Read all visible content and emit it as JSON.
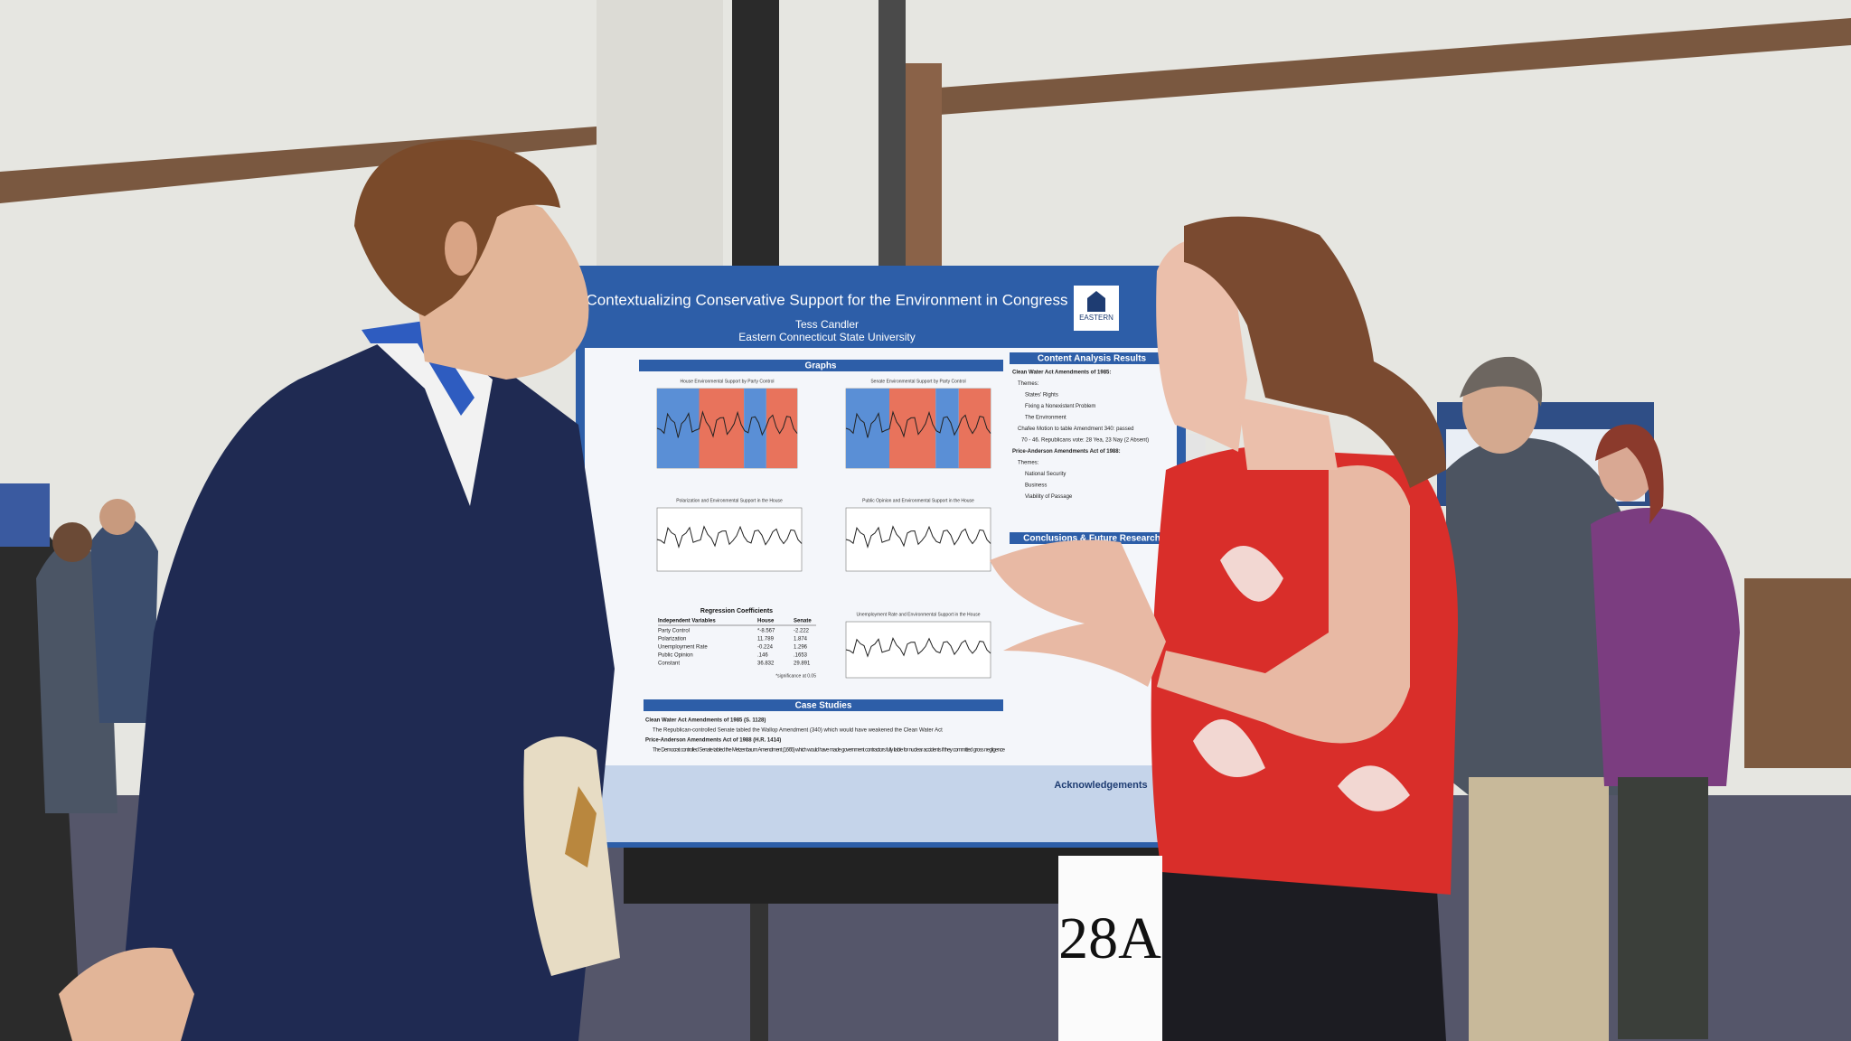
{
  "poster": {
    "title": "Contextualizing Conservative Support for the Environment in Congress",
    "author": "Tess Candler",
    "affiliation": "Eastern Connecticut State University",
    "logo": "EASTERN",
    "sections": {
      "graphs": "Graphs",
      "content_analysis": "Content Analysis Results",
      "conclusions": "Conclusions & Future Research",
      "case_studies": "Case Studies",
      "acknowledgements": "Acknowledgements"
    },
    "graph_titles": [
      "House Environmental Support by Party Control",
      "Senate Environmental Support by Party Control",
      "Polarization and Environmental Support in the House",
      "Public Opinion and Environmental Support in the House",
      "Unemployment Rate and Environmental Support in the House"
    ],
    "regression": {
      "title": "Regression Coefficients",
      "header": [
        "Independent Variables",
        "House",
        "Senate"
      ],
      "rows": [
        [
          "Party Control",
          "*-8.567",
          "-2.222"
        ],
        [
          "Polarization",
          "11.789",
          "1.874"
        ],
        [
          "Unemployment Rate",
          "-0.224",
          "1.296"
        ],
        [
          "Public Opinion",
          ".146",
          ".1653"
        ],
        [
          "Constant",
          "36.832",
          "29.891"
        ]
      ],
      "note": "*significance at 0.05"
    },
    "content_analysis": [
      "Clean Water Act Amendments of 1985:",
      "Themes:",
      "States' Rights",
      "Fixing a Nonexistent Problem",
      "The Environment",
      "Chafee Motion to table Amendment 340: passed",
      "70 - 46. Republicans vote: 28 Yea, 23 Nay (2 Absent)",
      "Price-Anderson Amendments Act of 1988:",
      "Themes:",
      "National Security",
      "Business",
      "Viability of Passage"
    ],
    "case_studies": [
      "Clean Water Act Amendments of 1985 (S. 1128)",
      "The Republican-controlled Senate tabled the Wallop Amendment (340) which would have weakened the Clean Water Act",
      "Price-Anderson Amendments Act of 1988 (H.R. 1414)",
      "The Democrat controlled Senate tabled the Metzenbaum Amendment (1665) which would have made government contractors fully liable for nuclear accidents if they committed gross negligence"
    ]
  },
  "sign": {
    "number": "28A"
  }
}
